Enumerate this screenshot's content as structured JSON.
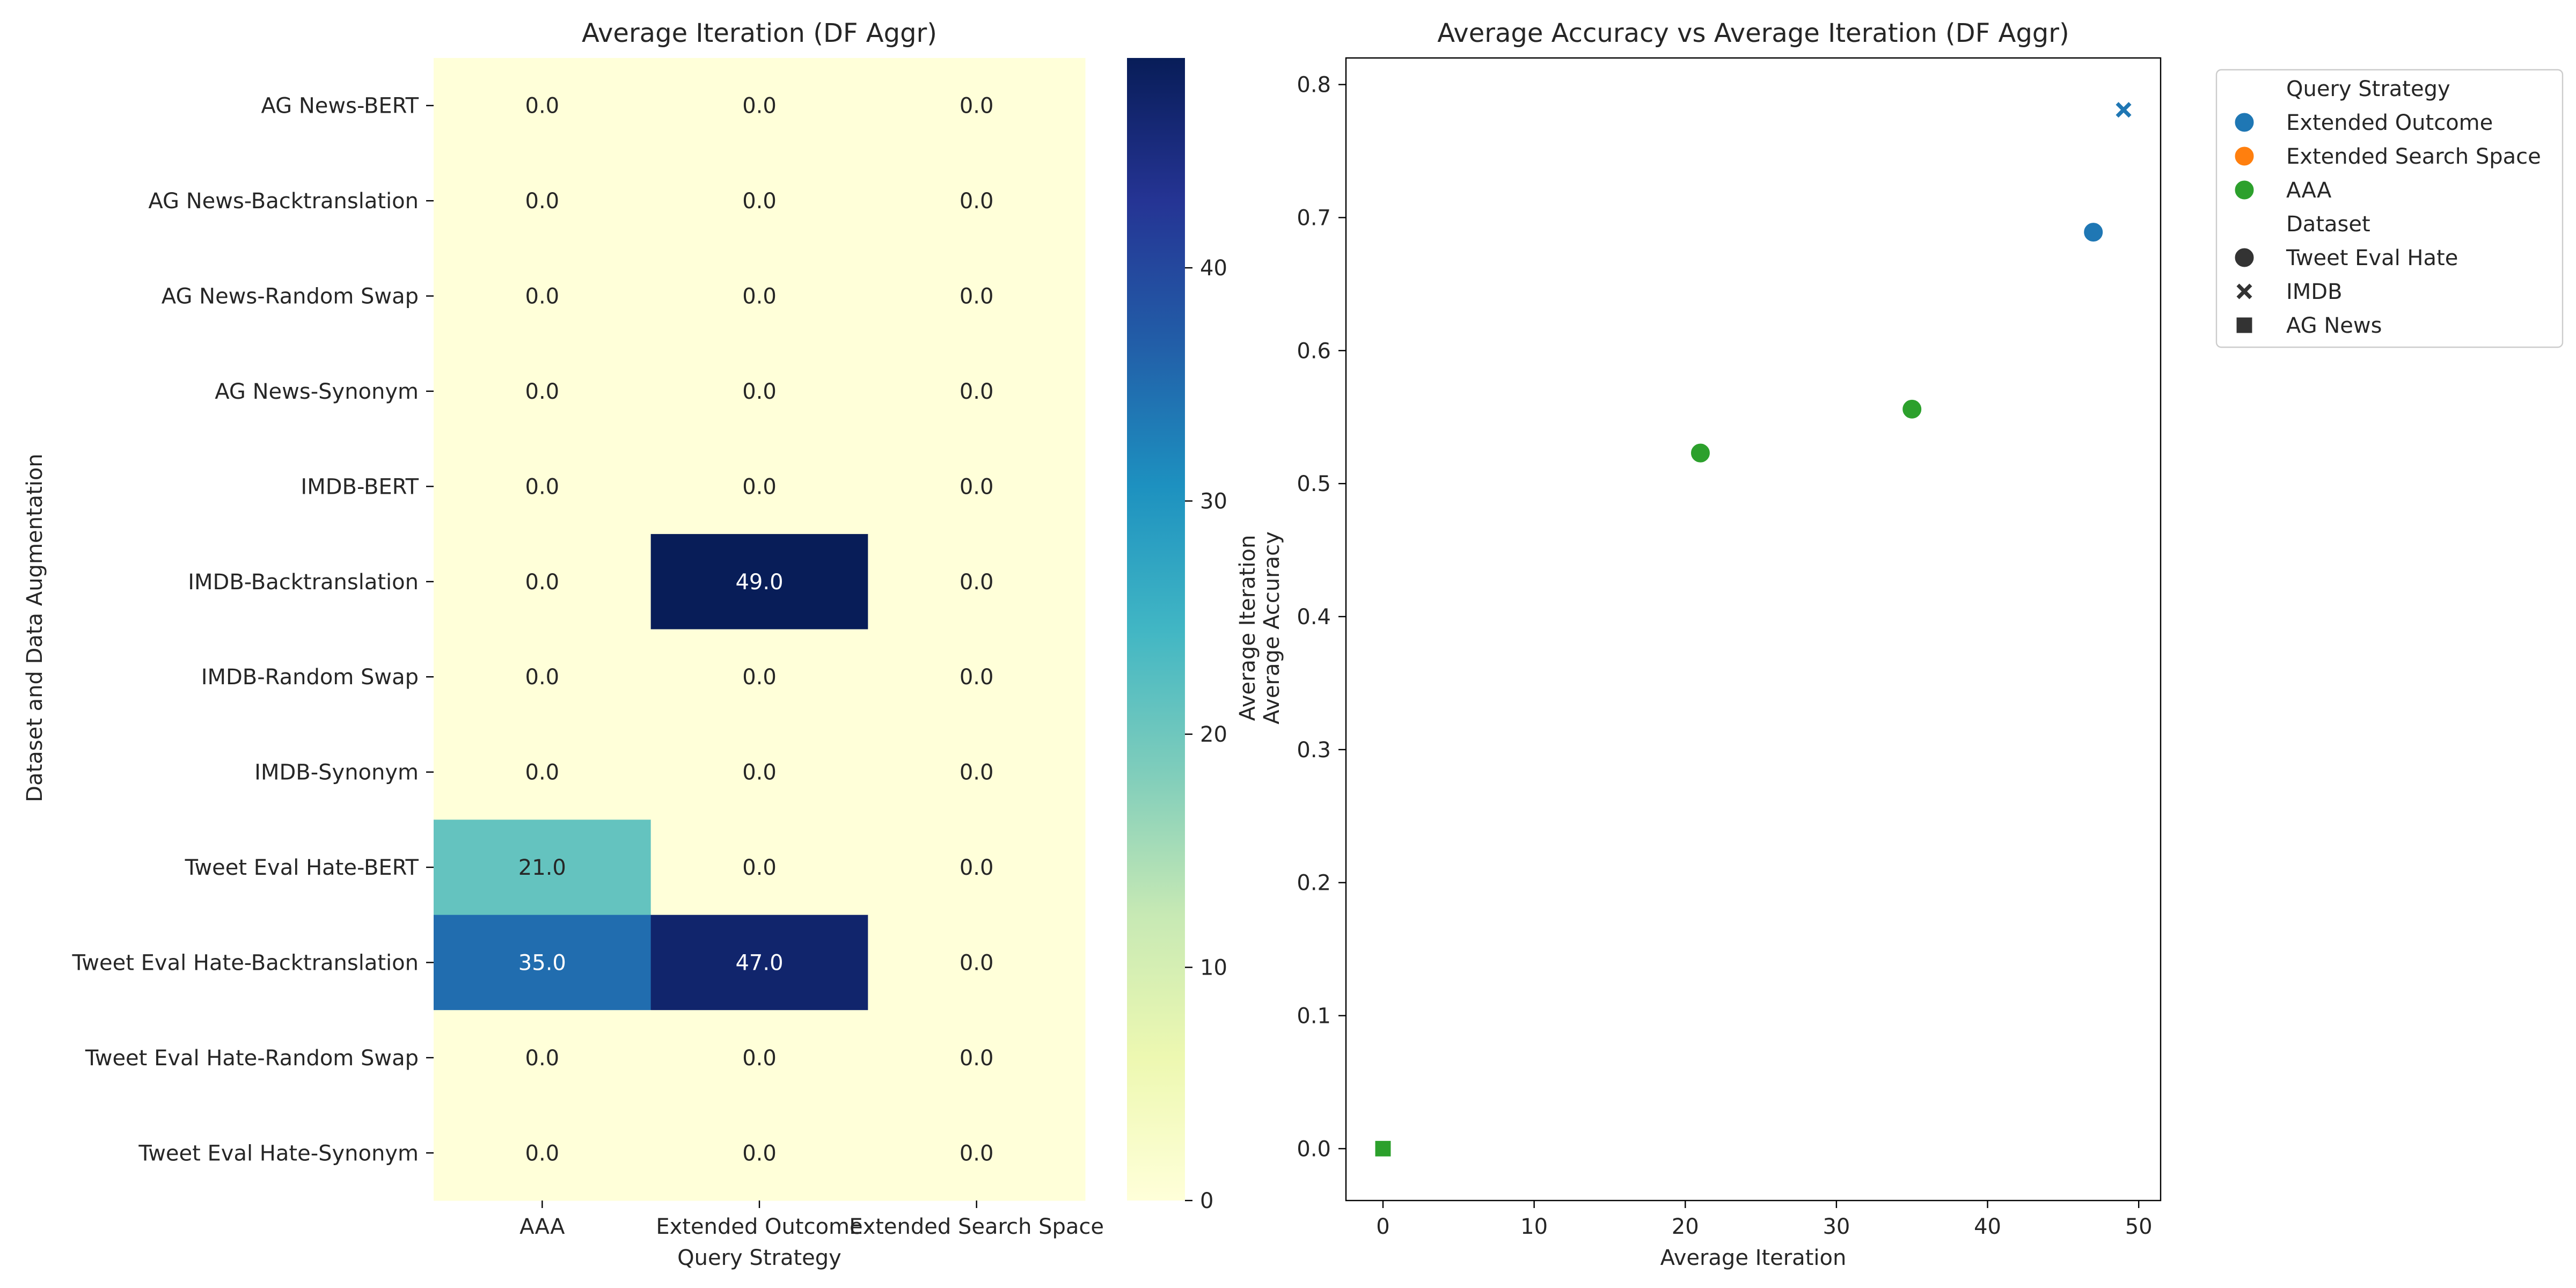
{
  "chart_data": [
    {
      "type": "heatmap",
      "title": "Average Iteration (DF Aggr)",
      "xlabel": "Query Strategy",
      "ylabel": "Dataset and Data Augmentation",
      "x_categories": [
        "AAA",
        "Extended Outcome",
        "Extended Search Space"
      ],
      "y_categories": [
        "AG News-BERT",
        "AG News-Backtranslation",
        "AG News-Random Swap",
        "AG News-Synonym",
        "IMDB-BERT",
        "IMDB-Backtranslation",
        "IMDB-Random Swap",
        "IMDB-Synonym",
        "Tweet Eval Hate-BERT",
        "Tweet Eval Hate-Backtranslation",
        "Tweet Eval Hate-Random Swap",
        "Tweet Eval Hate-Synonym"
      ],
      "values": [
        [
          0.0,
          0.0,
          0.0
        ],
        [
          0.0,
          0.0,
          0.0
        ],
        [
          0.0,
          0.0,
          0.0
        ],
        [
          0.0,
          0.0,
          0.0
        ],
        [
          0.0,
          0.0,
          0.0
        ],
        [
          0.0,
          49.0,
          0.0
        ],
        [
          0.0,
          0.0,
          0.0
        ],
        [
          0.0,
          0.0,
          0.0
        ],
        [
          21.0,
          0.0,
          0.0
        ],
        [
          35.0,
          47.0,
          0.0
        ],
        [
          0.0,
          0.0,
          0.0
        ],
        [
          0.0,
          0.0,
          0.0
        ]
      ],
      "colorbar": {
        "label_lines": [
          "Average Iteration",
          "Average Accuracy"
        ],
        "range": [
          0,
          49
        ],
        "ticks": [
          0,
          10,
          20,
          30,
          40
        ],
        "colormap": "YlGnBu"
      }
    },
    {
      "type": "scatter",
      "title": "Average Accuracy vs Average Iteration (DF Aggr)",
      "xlabel": "Average Iteration",
      "ylabel": "Average Accuracy",
      "xlim": [
        -2.45,
        51.45
      ],
      "ylim": [
        -0.039,
        0.82
      ],
      "xticks": [
        0,
        10,
        20,
        30,
        40,
        50
      ],
      "yticks": [
        0.0,
        0.1,
        0.2,
        0.3,
        0.4,
        0.5,
        0.6,
        0.7,
        0.8
      ],
      "grid": false,
      "legend_position": "outside upper right",
      "hue_title": "Query Strategy",
      "style_title": "Dataset",
      "strategies": [
        {
          "name": "Extended Outcome",
          "color": "#1f77b4"
        },
        {
          "name": "Extended Search Space",
          "color": "#ff7f0e"
        },
        {
          "name": "AAA",
          "color": "#2ca02c"
        }
      ],
      "datasets": [
        {
          "name": "Tweet Eval Hate",
          "marker": "circle"
        },
        {
          "name": "IMDB",
          "marker": "x"
        },
        {
          "name": "AG News",
          "marker": "square"
        }
      ],
      "points": [
        {
          "x": 49,
          "y": 0.781,
          "strategy": "Extended Outcome",
          "dataset": "IMDB"
        },
        {
          "x": 47,
          "y": 0.689,
          "strategy": "Extended Outcome",
          "dataset": "Tweet Eval Hate"
        },
        {
          "x": 35,
          "y": 0.556,
          "strategy": "AAA",
          "dataset": "Tweet Eval Hate"
        },
        {
          "x": 21,
          "y": 0.523,
          "strategy": "AAA",
          "dataset": "Tweet Eval Hate"
        },
        {
          "x": 0,
          "y": 0.0,
          "strategy": "Extended Search Space",
          "dataset": "AG News"
        },
        {
          "x": 0,
          "y": 0.0,
          "strategy": "Extended Outcome",
          "dataset": "AG News"
        },
        {
          "x": 0,
          "y": 0.0,
          "strategy": "AAA",
          "dataset": "AG News"
        }
      ]
    }
  ]
}
